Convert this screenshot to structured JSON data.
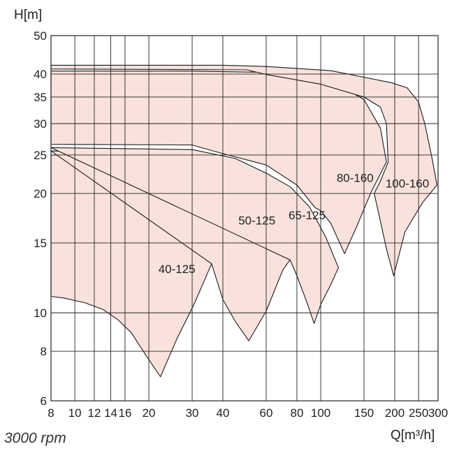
{
  "chart_data": {
    "type": "area",
    "xlabel": "Q[m³/h]",
    "ylabel": "H[m]",
    "x_scale": "log",
    "y_scale": "log",
    "xlim": [
      8,
      300
    ],
    "ylim": [
      6,
      50
    ],
    "x_ticks": [
      8,
      10,
      12,
      14,
      16,
      20,
      30,
      40,
      60,
      80,
      100,
      150,
      200,
      250,
      300
    ],
    "x_tick_labels": [
      "8",
      "10",
      "12",
      "14",
      "16",
      "20",
      "30",
      "40",
      "60",
      "80",
      "100",
      "150",
      "200",
      "250",
      "300"
    ],
    "y_ticks": [
      6,
      8,
      10,
      15,
      20,
      25,
      30,
      35,
      40,
      50
    ],
    "y_tick_labels": [
      "6",
      "8",
      "10",
      "15",
      "20",
      "25",
      "30",
      "35",
      "40",
      "50"
    ],
    "grid": true,
    "fill_color": "#f9e2dc",
    "series": [
      {
        "name": "40-125",
        "label_at": [
          26,
          12.6
        ],
        "boundary": [
          [
            8,
            25
          ],
          [
            12,
            24.9
          ],
          [
            16,
            24.3
          ],
          [
            20,
            22.9
          ],
          [
            24,
            20.8
          ],
          [
            28,
            18
          ],
          [
            32,
            15.5
          ],
          [
            36,
            13.3
          ],
          [
            30.5,
            10.5
          ],
          [
            26,
            8.6
          ],
          [
            22.3,
            6.9
          ],
          [
            19.5,
            7.8
          ],
          [
            17,
            8.9
          ],
          [
            15,
            9.6
          ],
          [
            13,
            10.2
          ],
          [
            11,
            10.6
          ],
          [
            9,
            10.9
          ],
          [
            8,
            11
          ]
        ]
      },
      {
        "name": "50-125",
        "label_at": [
          55,
          16.7
        ],
        "boundary": [
          [
            8,
            25.6
          ],
          [
            20,
            25.1
          ],
          [
            30,
            24.3
          ],
          [
            40,
            22.9
          ],
          [
            50,
            21
          ],
          [
            60,
            18.5
          ],
          [
            70,
            15.5
          ],
          [
            75,
            13.6
          ],
          [
            70,
            12.8
          ],
          [
            60,
            10.1
          ],
          [
            51,
            8.5
          ],
          [
            45,
            9.5
          ],
          [
            40,
            10.8
          ],
          [
            36,
            13.3
          ]
        ]
      },
      {
        "name": "65-125",
        "label_at": [
          88,
          17.2
        ],
        "boundary": [
          [
            8,
            26.1
          ],
          [
            30,
            25.8
          ],
          [
            45,
            24.5
          ],
          [
            60,
            22.5
          ],
          [
            75,
            20.8
          ],
          [
            90,
            18.5
          ],
          [
            105,
            15.5
          ],
          [
            118,
            13
          ],
          [
            110,
            11.8
          ],
          [
            100,
            10.5
          ],
          [
            94,
            9.4
          ],
          [
            88,
            10.6
          ],
          [
            80,
            12.4
          ],
          [
            75,
            13.6
          ]
        ]
      },
      {
        "name": "80-160",
        "label_at": [
          138,
          21.4
        ],
        "boundary": [
          [
            8,
            26.6
          ],
          [
            30,
            26.5
          ],
          [
            40,
            25.2
          ],
          [
            60,
            23.6
          ],
          [
            80,
            21
          ],
          [
            95,
            18.4
          ],
          [
            100,
            18.1
          ],
          [
            110,
            16.8
          ],
          [
            125,
            14.1
          ],
          [
            140,
            16.5
          ],
          [
            160,
            20.1
          ],
          [
            185,
            24
          ],
          [
            175,
            29.2
          ],
          [
            150,
            34.5
          ],
          [
            120,
            37.3
          ],
          [
            90,
            39.3
          ],
          [
            60,
            40.4
          ],
          [
            30,
            40.7
          ],
          [
            8,
            40.7
          ],
          [
            8,
            26.6
          ]
        ]
      },
      {
        "name": "100-160",
        "label_at": [
          225,
          20.7
        ],
        "boundary": [
          [
            8,
            41.2
          ],
          [
            50,
            41
          ],
          [
            60,
            39.9
          ],
          [
            100,
            37.7
          ],
          [
            150,
            35
          ],
          [
            175,
            33
          ],
          [
            185,
            30
          ],
          [
            188,
            24
          ],
          [
            175,
            21.5
          ],
          [
            165,
            20
          ],
          [
            175,
            17
          ],
          [
            185,
            14.5
          ],
          [
            198,
            12.4
          ],
          [
            220,
            16
          ],
          [
            260,
            19
          ],
          [
            297,
            21
          ],
          [
            282,
            25
          ],
          [
            265,
            30
          ],
          [
            250,
            34
          ],
          [
            225,
            36.9
          ],
          [
            195,
            38
          ],
          [
            140,
            39.6
          ],
          [
            110,
            40.8
          ],
          [
            60,
            41.8
          ],
          [
            40,
            42.1
          ],
          [
            8,
            42.1
          ]
        ]
      }
    ]
  },
  "note": "3000 rpm"
}
